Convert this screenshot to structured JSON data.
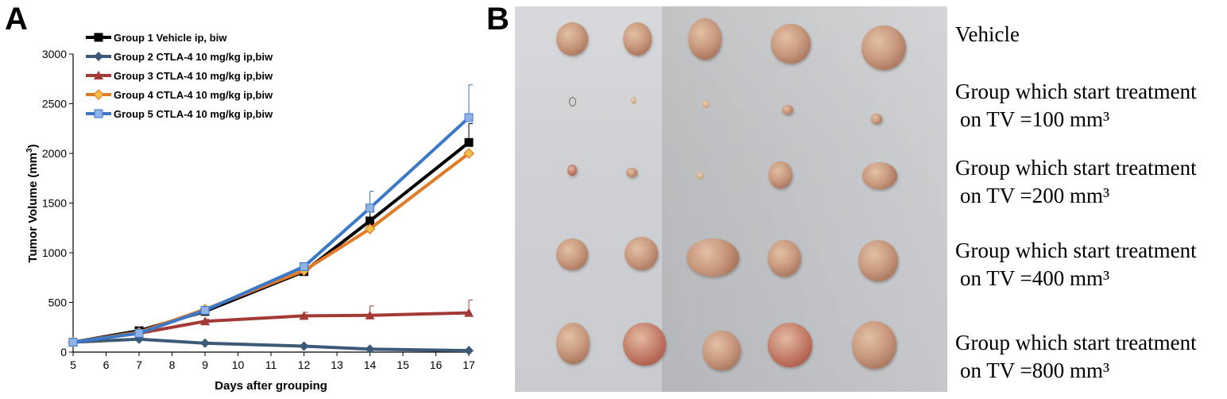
{
  "panels": {
    "a": "A",
    "b": "B"
  },
  "chart_data": {
    "type": "line",
    "xlabel": "Days after grouping",
    "ylabel": "Tumor Volume (mm3)",
    "x_ticks": [
      5,
      6,
      7,
      8,
      9,
      10,
      11,
      12,
      13,
      14,
      15,
      16,
      17
    ],
    "y_ticks": [
      0,
      500,
      1000,
      1500,
      2000,
      2500,
      3000
    ],
    "xlim": [
      5,
      17
    ],
    "ylim": [
      0,
      3000
    ],
    "legend_position": "top-left",
    "series": [
      {
        "name": "Group 1 Vehicle  ip, biw",
        "color": "#000000",
        "marker": "square",
        "x": [
          5,
          7,
          9,
          12,
          14,
          17
        ],
        "y": [
          100,
          215,
          410,
          810,
          1320,
          2110
        ],
        "err": [
          0,
          20,
          30,
          40,
          90,
          190
        ]
      },
      {
        "name": "Group 2 CTLA-4  10 mg/kg ip,biw",
        "color": "#3c5a78",
        "marker": "diamond",
        "x": [
          5,
          7,
          9,
          12,
          14,
          17
        ],
        "y": [
          100,
          130,
          90,
          60,
          30,
          15
        ],
        "err": [
          0,
          0,
          0,
          0,
          0,
          0
        ]
      },
      {
        "name": "Group 3 CTLA-4  10 mg/kg ip,biw",
        "color": "#a33a35",
        "marker": "triangle",
        "x": [
          5,
          7,
          9,
          12,
          14,
          17
        ],
        "y": [
          100,
          190,
          310,
          365,
          370,
          395
        ],
        "err": [
          0,
          0,
          20,
          35,
          95,
          130
        ]
      },
      {
        "name": "Group 4 CTLA-4  10 mg/kg ip,biw",
        "color": "#e07b27",
        "marker": "diamond-star",
        "x": [
          5,
          7,
          9,
          12,
          14,
          17
        ],
        "y": [
          100,
          200,
          430,
          820,
          1240,
          2000
        ],
        "err": [
          0,
          0,
          0,
          0,
          0,
          0
        ]
      },
      {
        "name": "Group 5 CTLA-4  10 mg/kg ip,biw",
        "color": "#3b78c8",
        "marker": "cross-square",
        "x": [
          5,
          7,
          9,
          12,
          14,
          17
        ],
        "y": [
          100,
          190,
          420,
          860,
          1450,
          2360
        ],
        "err": [
          0,
          0,
          0,
          0,
          170,
          330
        ]
      }
    ]
  },
  "photo_rows": [
    {
      "label_line1": "Vehicle",
      "label_line2": ""
    },
    {
      "label_line1": "Group which start treatment",
      "label_line2": "on TV =100 mm³"
    },
    {
      "label_line1": "Group which start treatment",
      "label_line2": "on TV =200 mm³"
    },
    {
      "label_line1": "Group which start treatment",
      "label_line2": "on TV =400 mm³"
    },
    {
      "label_line1": "Group which start treatment",
      "label_line2": "on TV =800 mm³"
    }
  ]
}
